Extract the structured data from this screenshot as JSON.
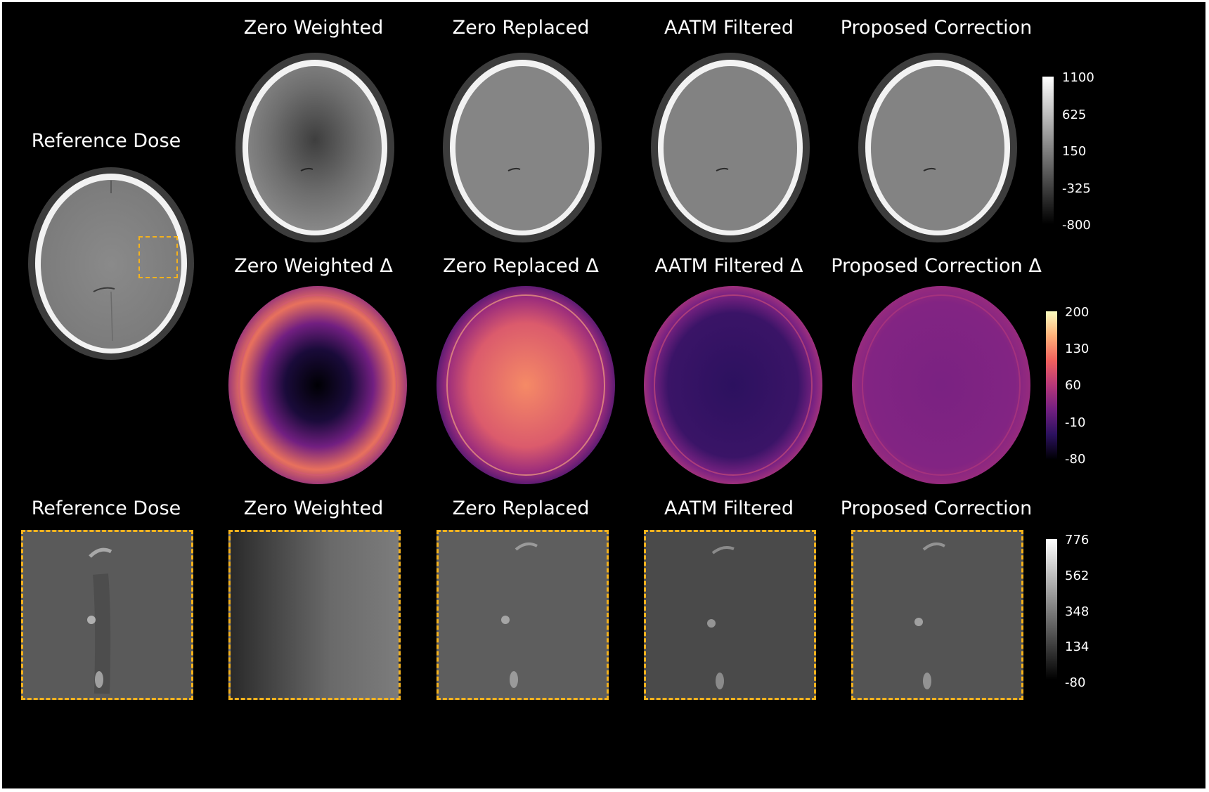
{
  "colors": {
    "background": "#000000",
    "zoom_border": "#f5b21c",
    "magma": [
      "#000004",
      "#2c115f",
      "#721f81",
      "#b73779",
      "#f1605d",
      "#feb078",
      "#fcfdbf"
    ]
  },
  "row1": {
    "reference_title": "Reference Dose",
    "titles": [
      "Zero Weighted",
      "Zero Replaced",
      "AATM Filtered",
      "Proposed Correction"
    ],
    "colorbar": {
      "ticks": [
        "1100",
        "625",
        "150",
        "-325",
        "-800"
      ],
      "colormap": "gray"
    }
  },
  "row2": {
    "titles": [
      "Zero Weighted Δ",
      "Zero Replaced Δ",
      "AATM Filtered Δ",
      "Proposed Correction Δ"
    ],
    "colorbar": {
      "ticks": [
        "200",
        "130",
        "60",
        "-10",
        "-80"
      ],
      "colormap": "magma"
    }
  },
  "row3": {
    "titles": [
      "Reference Dose",
      "Zero Weighted",
      "Zero Replaced",
      "AATM Filtered",
      "Proposed Correction"
    ],
    "colorbar": {
      "ticks": [
        "776",
        "562",
        "348",
        "134",
        "-80"
      ],
      "colormap": "gray"
    }
  }
}
